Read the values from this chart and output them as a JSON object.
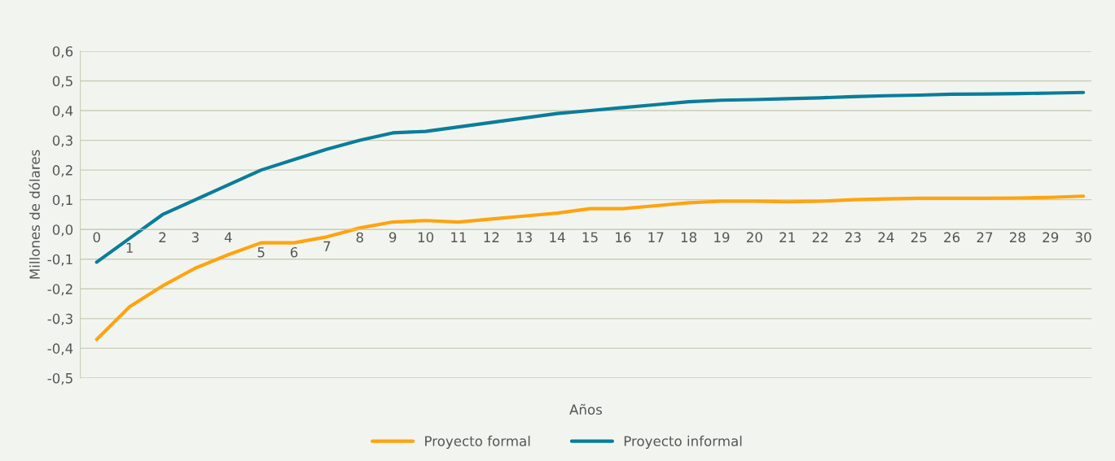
{
  "chart_data": {
    "type": "line",
    "xlabel": "Años",
    "ylabel": "Millones de dólares",
    "categories": [
      "0",
      "1",
      "2",
      "3",
      "4",
      "5",
      "6",
      "7",
      "8",
      "9",
      "10",
      "11",
      "12",
      "13",
      "14",
      "15",
      "16",
      "17",
      "18",
      "19",
      "20",
      "21",
      "22",
      "23",
      "24",
      "25",
      "26",
      "27",
      "28",
      "29",
      "30"
    ],
    "series": [
      {
        "name": "Proyecto formal",
        "color": "#ffa30f",
        "values": [
          -0.37,
          -0.26,
          -0.19,
          -0.13,
          -0.085,
          -0.045,
          -0.045,
          -0.025,
          0.005,
          0.025,
          0.03,
          0.025,
          0.035,
          0.045,
          0.055,
          0.07,
          0.07,
          0.08,
          0.09,
          0.095,
          0.095,
          0.093,
          0.095,
          0.1,
          0.103,
          0.105,
          0.105,
          0.105,
          0.106,
          0.108,
          0.112
        ]
      },
      {
        "name": "Proyecto informal",
        "color": "#0a7d9a",
        "values": [
          -0.11,
          -0.03,
          0.05,
          0.1,
          0.15,
          0.2,
          0.235,
          0.27,
          0.3,
          0.325,
          0.33,
          0.345,
          0.36,
          0.375,
          0.39,
          0.4,
          0.41,
          0.42,
          0.43,
          0.435,
          0.437,
          0.44,
          0.443,
          0.447,
          0.45,
          0.452,
          0.455,
          0.456,
          0.457,
          0.459,
          0.461
        ]
      }
    ],
    "ylim": [
      -0.5,
      0.6
    ],
    "yticks": [
      {
        "value": -0.5,
        "label": "-0,5"
      },
      {
        "value": -0.4,
        "label": "-0,4"
      },
      {
        "value": -0.3,
        "label": "-0,3"
      },
      {
        "value": -0.2,
        "label": "-0,2"
      },
      {
        "value": -0.1,
        "label": "-0,1"
      },
      {
        "value": 0.0,
        "label": "0,0"
      },
      {
        "value": 0.1,
        "label": "0,1"
      },
      {
        "value": 0.2,
        "label": "0,2"
      },
      {
        "value": 0.3,
        "label": "0,3"
      },
      {
        "value": 0.4,
        "label": "0,4"
      },
      {
        "value": 0.5,
        "label": "0,5"
      },
      {
        "value": 0.6,
        "label": "0,6"
      }
    ],
    "grid": "y",
    "legend": "bottom",
    "marker": "none",
    "line_style": "solid"
  }
}
